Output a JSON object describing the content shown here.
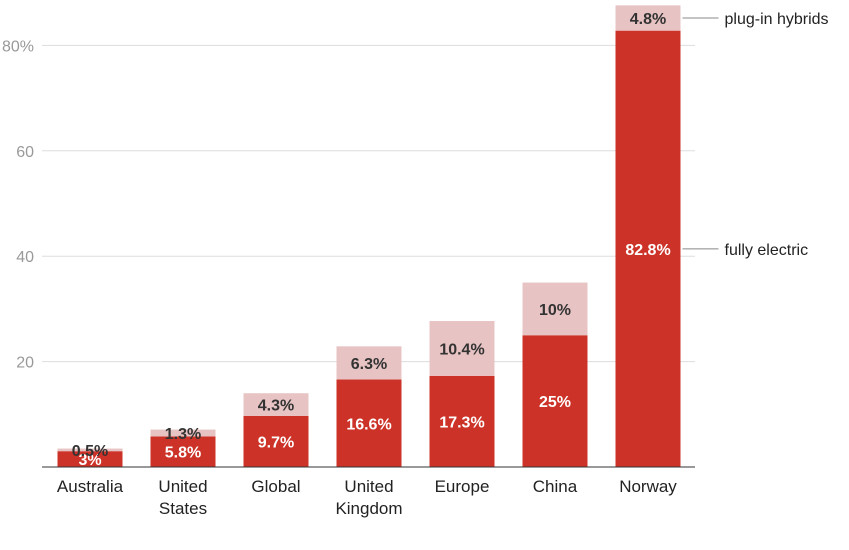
{
  "chart_data": {
    "type": "bar",
    "stacked": true,
    "categories": [
      [
        "Australia"
      ],
      [
        "United",
        "States"
      ],
      [
        "Global"
      ],
      [
        "United",
        "Kingdom"
      ],
      [
        "Europe"
      ],
      [
        "China"
      ],
      [
        "Norway"
      ]
    ],
    "series": [
      {
        "name": "fully electric",
        "values": [
          3,
          5.8,
          9.7,
          16.6,
          17.3,
          25,
          82.8
        ],
        "labels": [
          "3%",
          "5.8%",
          "9.7%",
          "16.6%",
          "17.3%",
          "25%",
          "82.8%"
        ],
        "color": "#cc3227",
        "label_color": "#ffffff"
      },
      {
        "name": "plug-in hybrids",
        "values": [
          0.5,
          1.3,
          4.3,
          6.3,
          10.4,
          10,
          4.8
        ],
        "labels": [
          "0.5%",
          "1.3%",
          "4.3%",
          "6.3%",
          "10.4%",
          "10%",
          "4.8%"
        ],
        "color": "#e8c3c3",
        "label_color": "#333333"
      }
    ],
    "yticks": [
      {
        "value": 20,
        "label": "20"
      },
      {
        "value": 40,
        "label": "40"
      },
      {
        "value": 60,
        "label": "60"
      },
      {
        "value": 80,
        "label": "80%"
      }
    ],
    "ylim": [
      0,
      88
    ],
    "grid": true,
    "legend": "direct labels on right of last bar"
  }
}
